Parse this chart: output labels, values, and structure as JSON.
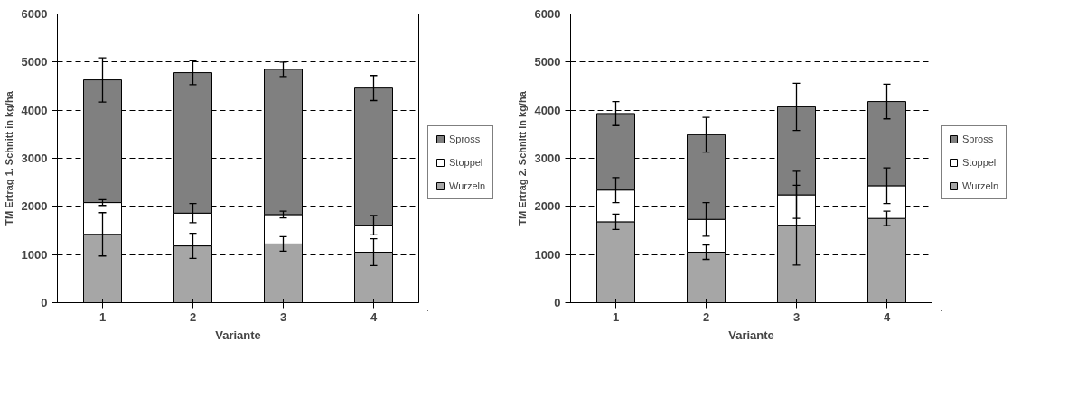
{
  "chart_data": [
    {
      "type": "bar",
      "stacked": true,
      "categories": [
        "1",
        "2",
        "3",
        "4"
      ],
      "xlabel": "Variante",
      "ylabel": "TM Ertrag 1. Schnitt in kg/ha",
      "ylim": [
        0,
        6000
      ],
      "yticks": [
        0,
        1000,
        2000,
        3000,
        4000,
        5000,
        6000
      ],
      "grid": "y",
      "legend": "right",
      "series": [
        {
          "name": "Wurzeln",
          "color": "#a6a6a6",
          "values": [
            1420,
            1180,
            1220,
            1050
          ],
          "errors": [
            450,
            260,
            150,
            280
          ]
        },
        {
          "name": "Stoppel",
          "color": "#ffffff",
          "values": [
            660,
            680,
            610,
            560
          ],
          "errors": [
            60,
            200,
            70,
            200
          ]
        },
        {
          "name": "Spross",
          "color": "#808080",
          "values": [
            2550,
            2920,
            3020,
            2850
          ],
          "errors": [
            460,
            250,
            150,
            260
          ]
        }
      ]
    },
    {
      "type": "bar",
      "stacked": true,
      "categories": [
        "1",
        "2",
        "3",
        "4"
      ],
      "xlabel": "Variante",
      "ylabel": "TM Ertrag 2. Schnitt in kg/ha",
      "ylim": [
        0,
        6000
      ],
      "yticks": [
        0,
        1000,
        2000,
        3000,
        4000,
        5000,
        6000
      ],
      "grid": "y",
      "legend": "right",
      "series": [
        {
          "name": "Wurzeln",
          "color": "#a6a6a6",
          "values": [
            1680,
            1050,
            1610,
            1750
          ],
          "errors": [
            160,
            150,
            830,
            150
          ]
        },
        {
          "name": "Stoppel",
          "color": "#ffffff",
          "values": [
            660,
            680,
            630,
            680
          ],
          "errors": [
            260,
            350,
            490,
            370
          ]
        },
        {
          "name": "Spross",
          "color": "#808080",
          "values": [
            1590,
            1760,
            1830,
            1750
          ],
          "errors": [
            250,
            360,
            490,
            360
          ]
        }
      ]
    }
  ]
}
